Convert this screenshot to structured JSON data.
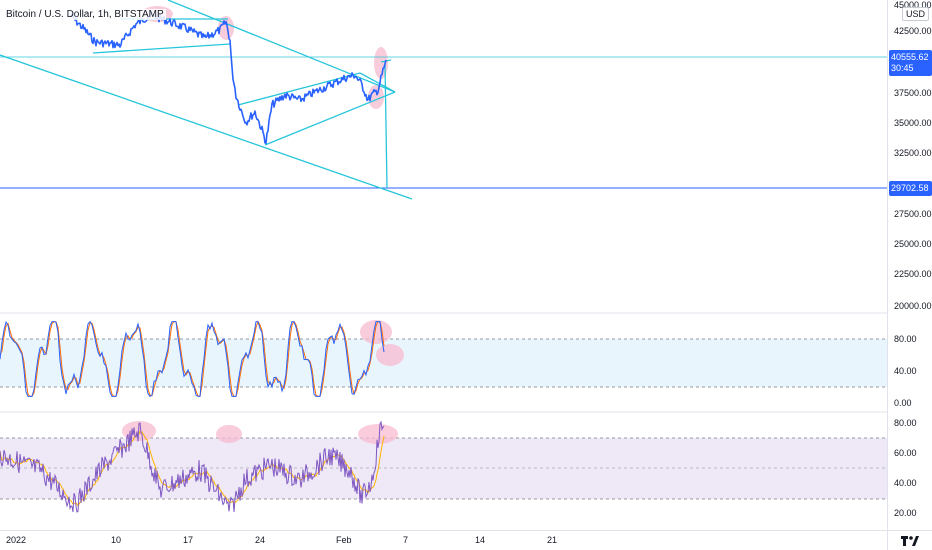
{
  "header": {
    "title": "Bitcoin / U.S. Dollar, 1h, BITSTAMP"
  },
  "price_axis": {
    "unit": "USD",
    "ticks": [
      "45000.00",
      "42500.00",
      "37500.00",
      "35000.00",
      "32500.00",
      "27500.00",
      "25000.00",
      "22500.00",
      "20000.00"
    ],
    "last_price": "40555.62",
    "countdown": "30:45",
    "target_price": "29702.58"
  },
  "stoch_axis": {
    "ticks": [
      "80.00",
      "40.00",
      "0.00"
    ]
  },
  "rsi_axis": {
    "ticks": [
      "80.00",
      "60.00",
      "40.00",
      "20.00"
    ]
  },
  "time_axis": {
    "ticks": [
      "2022",
      "10",
      "17",
      "24",
      "Feb",
      "7",
      "14",
      "21"
    ]
  },
  "colors": {
    "price_line": "#2962ff",
    "trendline": "#26c6da",
    "horizontal_line": "#2962ff",
    "stoch_k": "#2962ff",
    "stoch_d": "#ff6d00",
    "rsi_line": "#7e57c2",
    "rsi_ma": "#ffb300",
    "highlight": "#f8bbd0",
    "stoch_band": "#e3f2fd",
    "rsi_band": "#ede7f6"
  }
}
